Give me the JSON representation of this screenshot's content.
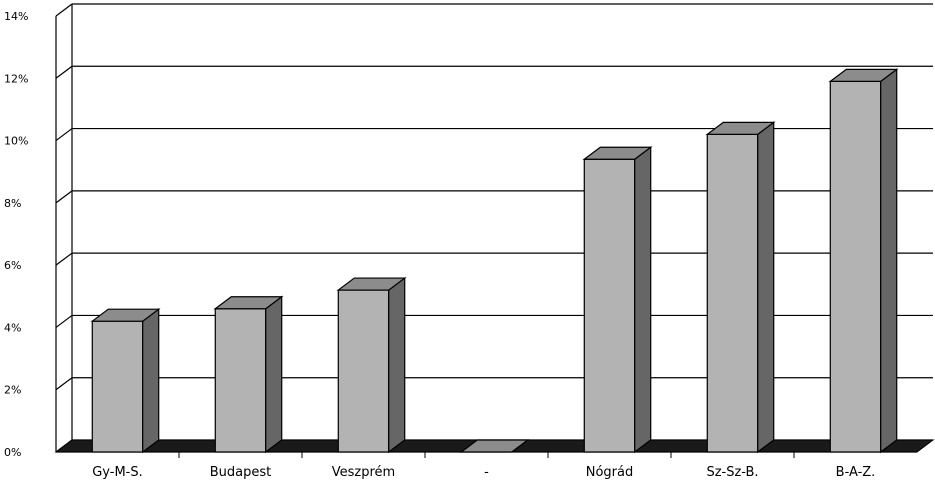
{
  "chart_data": {
    "type": "bar",
    "style": "3d-column",
    "categories": [
      "Gy-M-S.",
      "Budapest",
      "Veszprém",
      "-",
      "Nógrád",
      "Sz-Sz-B.",
      "B-A-Z."
    ],
    "values": [
      4.2,
      4.6,
      5.2,
      0,
      9.4,
      10.2,
      11.9
    ],
    "ylim": [
      0,
      14
    ],
    "yticks": [
      "0%",
      "2%",
      "4%",
      "6%",
      "8%",
      "10%",
      "12%",
      "14%"
    ],
    "unit": "%",
    "grid": true,
    "legend": "none",
    "colors": {
      "bar_front": "#b3b3b3",
      "bar_side": "#666666",
      "bar_top": "#8c8c8c",
      "floor": "#1a1a1a",
      "gridline": "#000000"
    }
  }
}
